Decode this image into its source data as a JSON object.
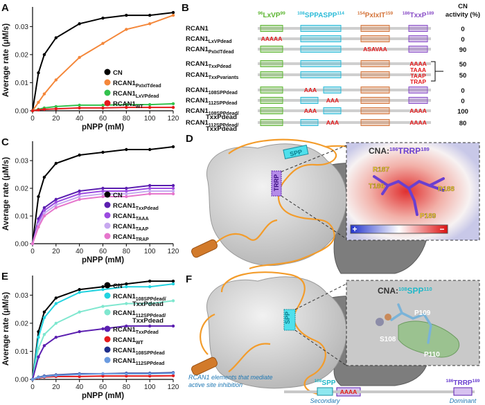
{
  "chart_data": [
    {
      "type": "line",
      "panel": "A",
      "xlabel": "pNPP (mM)",
      "ylabel": "Average rate (μM/s)",
      "x": [
        0,
        5,
        10,
        20,
        40,
        60,
        80,
        100,
        120
      ],
      "xlim": [
        0,
        120
      ],
      "xticks": [
        0,
        20,
        40,
        60,
        80,
        100,
        120
      ],
      "ylim": [
        0,
        0.036
      ],
      "yticks": [
        {
          "value": 0,
          "label": "0.00"
        },
        0.01,
        0.02,
        0.03
      ],
      "legend": "lower right",
      "series": [
        {
          "name": "CN",
          "color": "#000000",
          "values": [
            0,
            0.0135,
            0.02,
            0.026,
            0.031,
            0.033,
            0.034,
            0.034,
            0.035
          ]
        },
        {
          "name": "RCAN1",
          "sub": "PxIxITdead",
          "color": "#f4873a",
          "values": [
            0,
            0.003,
            0.006,
            0.011,
            0.019,
            0.024,
            0.029,
            0.031,
            0.034
          ]
        },
        {
          "name": "RCAN1",
          "sub": "LxVPdead",
          "color": "#33c24d",
          "values": [
            0,
            0.0005,
            0.001,
            0.0015,
            0.002,
            0.002,
            0.0022,
            0.0022,
            0.0025
          ]
        },
        {
          "name": "RCAN1",
          "sub": "WT",
          "color": "#e41a1c",
          "values": [
            0,
            0.0003,
            0.0005,
            0.0007,
            0.001,
            0.001,
            0.0012,
            0.0012,
            0.0012
          ]
        }
      ]
    },
    {
      "type": "line",
      "panel": "C",
      "xlabel": "pNPP (mM)",
      "ylabel": "Average rate (μM/s)",
      "x": [
        0,
        5,
        10,
        20,
        40,
        60,
        80,
        100,
        120
      ],
      "xlim": [
        0,
        120
      ],
      "xticks": [
        0,
        20,
        40,
        60,
        80,
        100,
        120
      ],
      "ylim": [
        0,
        0.036
      ],
      "yticks": [
        {
          "value": 0,
          "label": "0.00"
        },
        0.01,
        0.02,
        0.03
      ],
      "legend": "lower right",
      "series": [
        {
          "name": "CN",
          "color": "#000000",
          "values": [
            0,
            0.017,
            0.024,
            0.029,
            0.032,
            0.033,
            0.034,
            0.034,
            0.035
          ]
        },
        {
          "name": "RCAN1",
          "sub": "TxxPdead",
          "color": "#5b1fb0",
          "values": [
            0,
            0.009,
            0.013,
            0.016,
            0.019,
            0.02,
            0.02,
            0.021,
            0.021
          ]
        },
        {
          "name": "RCAN1",
          "sub": "TAAA",
          "color": "#9b4be0",
          "values": [
            0,
            0.008,
            0.012,
            0.015,
            0.018,
            0.019,
            0.019,
            0.02,
            0.02
          ]
        },
        {
          "name": "RCAN1",
          "sub": "TAAP",
          "color": "#c7a8ef",
          "values": [
            0,
            0.007,
            0.011,
            0.014,
            0.017,
            0.018,
            0.018,
            0.019,
            0.019
          ]
        },
        {
          "name": "RCAN1",
          "sub": "TRAP",
          "color": "#e676cc",
          "values": [
            0,
            0.006,
            0.01,
            0.013,
            0.016,
            0.017,
            0.017,
            0.018,
            0.018
          ]
        }
      ]
    },
    {
      "type": "line",
      "panel": "E",
      "xlabel": "pNPP (mM)",
      "ylabel": "Average rate (μM/s)",
      "x": [
        0,
        5,
        10,
        20,
        40,
        60,
        80,
        100,
        120
      ],
      "xlim": [
        0,
        120
      ],
      "xticks": [
        0,
        20,
        40,
        60,
        80,
        100,
        120
      ],
      "ylim": [
        0,
        0.036
      ],
      "yticks": [
        {
          "value": 0,
          "label": "0.00"
        },
        0.01,
        0.02,
        0.03
      ],
      "legend": "upper right",
      "series": [
        {
          "name": "CN",
          "color": "#000000",
          "values": [
            0,
            0.017,
            0.024,
            0.029,
            0.032,
            0.033,
            0.034,
            0.035,
            0.035
          ]
        },
        {
          "name": "RCAN1",
          "sub": "108SPPdead/",
          "sub2": "TxxPdead",
          "color": "#22d3e0",
          "values": [
            0,
            0.015,
            0.022,
            0.027,
            0.031,
            0.032,
            0.033,
            0.033,
            0.034
          ]
        },
        {
          "name": "RCAN1",
          "sub": "112SPPdead/",
          "sub2": "TxxPdead",
          "color": "#7fe7cf",
          "values": [
            0,
            0.011,
            0.016,
            0.02,
            0.024,
            0.026,
            0.027,
            0.027,
            0.028
          ]
        },
        {
          "name": "RCAN1",
          "sub": "TxxPdead",
          "color": "#5b1fb0",
          "values": [
            0,
            0.008,
            0.012,
            0.015,
            0.017,
            0.018,
            0.019,
            0.019,
            0.019
          ]
        },
        {
          "name": "RCAN1",
          "sub": "WT",
          "color": "#e41a1c",
          "values": [
            0,
            0.0005,
            0.0008,
            0.001,
            0.001,
            0.0012,
            0.0012,
            0.0012,
            0.0013
          ]
        },
        {
          "name": "RCAN1",
          "sub": "108SPPdead",
          "color": "#1f2d8a",
          "values": [
            0,
            0.0008,
            0.0012,
            0.0016,
            0.002,
            0.002,
            0.0022,
            0.0022,
            0.0024
          ]
        },
        {
          "name": "RCAN1",
          "sub": "112SPPdead",
          "color": "#6b9be0",
          "values": [
            0,
            0.0007,
            0.001,
            0.0014,
            0.0018,
            0.002,
            0.002,
            0.002,
            0.0022
          ]
        }
      ]
    }
  ],
  "panel_b": {
    "label": "B",
    "activity_header": [
      "CN",
      "activity (%)"
    ],
    "domains": [
      {
        "pre": "96",
        "text": "LxVP",
        "post": "99",
        "color": "#5cb531"
      },
      {
        "pre": "108",
        "text": "SPPASPP",
        "post": "114",
        "color": "#2bbbd8"
      },
      {
        "pre": "154",
        "text": "PxIxIT",
        "post": "159",
        "color": "#d4743a"
      },
      {
        "pre": "186",
        "text": "TxxP",
        "post": "189",
        "color": "#8a4fc7"
      }
    ],
    "rows": [
      {
        "name": "RCAN1",
        "mutations": {},
        "activity": 0
      },
      {
        "name": "RCAN1",
        "sub": "LxVPdead",
        "mutations": {
          "lxvp": "AAAAA"
        },
        "activity": 0
      },
      {
        "name": "RCAN1",
        "sub": "PxIxITdead",
        "mutations": {
          "pxixit": "ASAVAA"
        },
        "activity": 90
      },
      {
        "name": "RCAN1",
        "sub": "TxxPdead",
        "mutations": {
          "txxp": "AAAA"
        },
        "activity": 50
      },
      {
        "name": "RCAN1",
        "sub": "TxxPvariants",
        "mutations": {
          "txxp": [
            "TAAA",
            "TAAP",
            "TRAP"
          ]
        },
        "activity": 50
      },
      {
        "name": "RCAN1",
        "sub": "108SPPdead",
        "mutations": {
          "spp": "AAA"
        },
        "activity": 0
      },
      {
        "name": "RCAN1",
        "sub": "112SPPdead",
        "mutations": {
          "spp": "AAA"
        },
        "activity": 0
      },
      {
        "name": "RCAN1",
        "sub": "108SPPdead/",
        "sub2": "TxxPdead",
        "mutations": {
          "spp": "AAA",
          "txxp": "AAAA"
        },
        "activity": 100
      },
      {
        "name": "RCAN1",
        "sub": "112SPPdead/",
        "sub2": "TxxPdead",
        "mutations": {
          "spp": "AAA",
          "txxp": "AAAA"
        },
        "activity": 80
      }
    ]
  },
  "panel_d": {
    "label": "D",
    "box_spp": "SPP",
    "box_trrp": "TRRP",
    "inset_title": {
      "prefix": "CNA:",
      "pre": "186",
      "text": "TRRP",
      "post": "189"
    },
    "residues": [
      "R187",
      "T186",
      "R188",
      "P189"
    ],
    "colorbar": [
      "+",
      "−"
    ]
  },
  "panel_f": {
    "label": "F",
    "box_spp": "SPP",
    "box_aaaa": "AAAA",
    "inset_title": {
      "prefix": "CNA:",
      "pre": "108",
      "text": "SPP",
      "post": "110"
    },
    "residues": [
      "P109",
      "S108",
      "P110"
    ],
    "legend": {
      "caption": [
        "RCAN1 elements that mediate",
        "active site inhibition"
      ],
      "secondary": {
        "pre": "108",
        "text": "SPP",
        "role": "Secondary"
      },
      "dominant": {
        "pre": "186",
        "text": "TRRP",
        "post": "189",
        "role": "Dominant"
      }
    }
  }
}
